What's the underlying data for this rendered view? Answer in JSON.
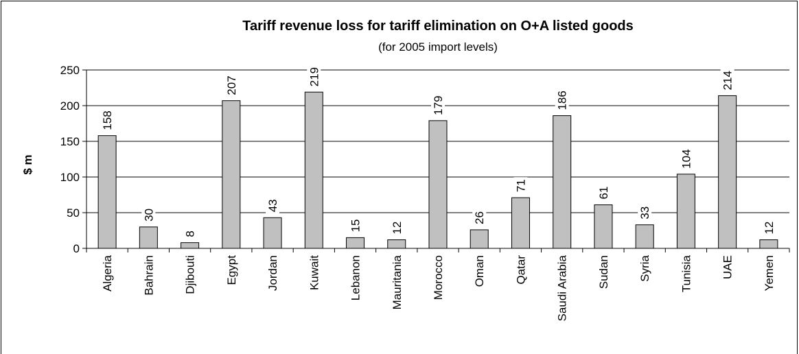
{
  "chart_data": {
    "type": "bar",
    "title": "Tariff revenue loss for tariff elimination on O+A listed goods",
    "subtitle": "(for 2005 import levels)",
    "y_label": "$ m",
    "categories": [
      "Algeria",
      "Bahrain",
      "Djibouti",
      "Egypt",
      "Jordan",
      "Kuwait",
      "Lebanon",
      "Mauritania",
      "Morocco",
      "Oman",
      "Qatar",
      "Saudi Arabia",
      "Sudan",
      "Syria",
      "Tunisia",
      "UAE",
      "Yemen"
    ],
    "values": [
      158,
      30,
      8,
      207,
      43,
      219,
      15,
      12,
      179,
      26,
      71,
      186,
      61,
      33,
      104,
      214,
      12
    ],
    "color": "#c0c0c0",
    "ylim": [
      0,
      250
    ],
    "yticks": [
      0,
      50,
      100,
      150,
      200,
      250
    ],
    "grid": true
  }
}
